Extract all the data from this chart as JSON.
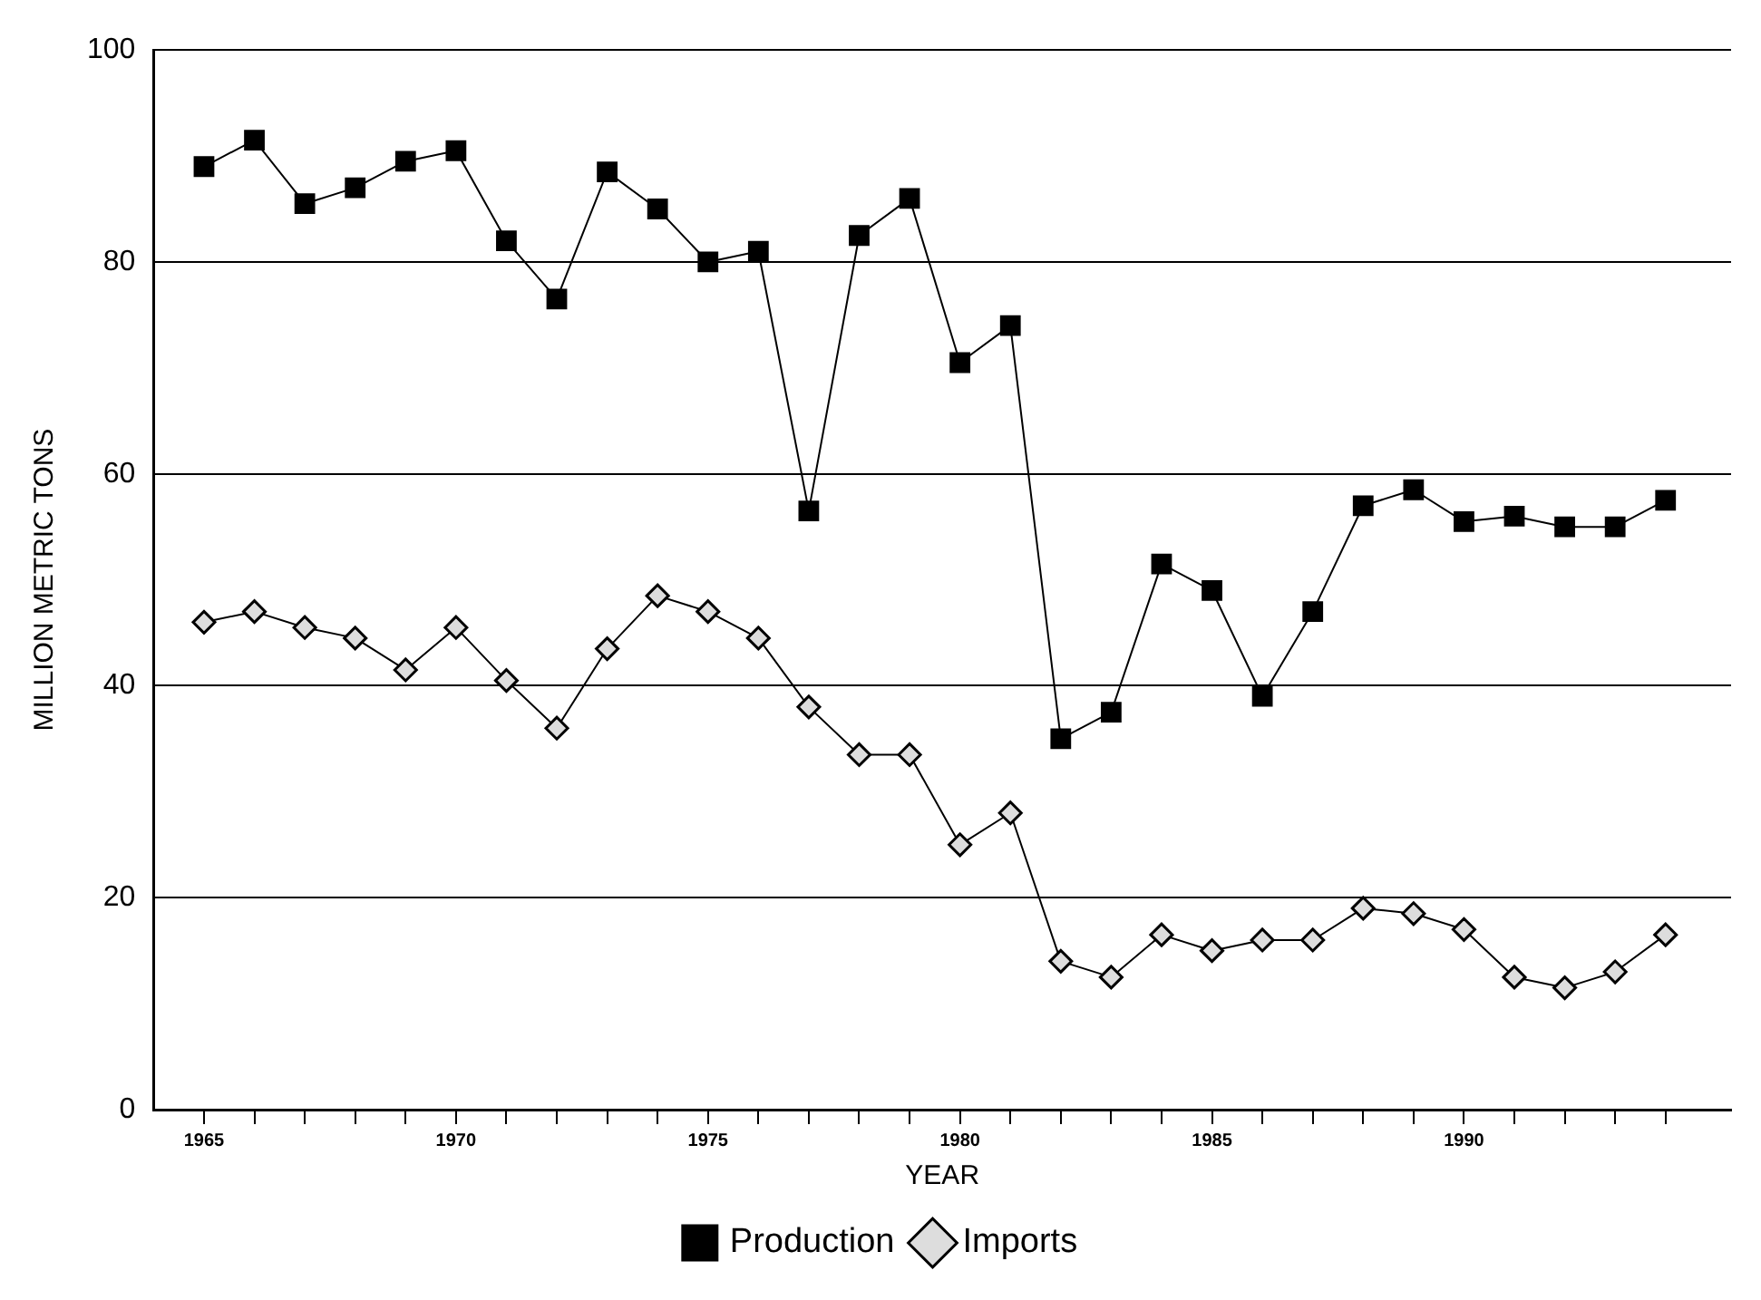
{
  "chart_data": {
    "type": "line",
    "xlabel": "YEAR",
    "ylabel": "MILLION METRIC TONS",
    "x": [
      1965,
      1966,
      1967,
      1968,
      1969,
      1970,
      1971,
      1972,
      1973,
      1974,
      1975,
      1976,
      1977,
      1978,
      1979,
      1980,
      1981,
      1982,
      1983,
      1984,
      1985,
      1986,
      1987,
      1988,
      1989,
      1990,
      1991,
      1992,
      1993,
      1994
    ],
    "series": [
      {
        "name": "Production",
        "color": "#000000",
        "marker": "square",
        "values": [
          89,
          91.5,
          85.5,
          87,
          89.5,
          90.5,
          82,
          76.5,
          88.5,
          85,
          80,
          81,
          56.5,
          82.5,
          86,
          70.5,
          74,
          35,
          37.5,
          51.5,
          49,
          39,
          47,
          57,
          58.5,
          55.5,
          56,
          55,
          55,
          57.5
        ]
      },
      {
        "name": "Imports",
        "color": "#000000",
        "marker": "diamond",
        "values": [
          46,
          47,
          45.5,
          44.5,
          41.5,
          45.5,
          40.5,
          36,
          43.5,
          48.5,
          47,
          44.5,
          38,
          33.5,
          33.5,
          25,
          28,
          14,
          12.5,
          16.5,
          15,
          16,
          16,
          19,
          18.5,
          17,
          12.5,
          11.5,
          13,
          16.5
        ]
      }
    ],
    "xlim": [
      1964,
      1995.3
    ],
    "xticks": [
      {
        "value": 1965,
        "label": "1965"
      },
      {
        "value": 1966,
        "label": null
      },
      {
        "value": 1967,
        "label": null
      },
      {
        "value": 1968,
        "label": null
      },
      {
        "value": 1969,
        "label": null
      },
      {
        "value": 1970,
        "label": "1970"
      },
      {
        "value": 1971,
        "label": null
      },
      {
        "value": 1972,
        "label": null
      },
      {
        "value": 1973,
        "label": null
      },
      {
        "value": 1974,
        "label": null
      },
      {
        "value": 1975,
        "label": "1975"
      },
      {
        "value": 1976,
        "label": null
      },
      {
        "value": 1977,
        "label": null
      },
      {
        "value": 1978,
        "label": null
      },
      {
        "value": 1979,
        "label": null
      },
      {
        "value": 1980,
        "label": "1980"
      },
      {
        "value": 1981,
        "label": null
      },
      {
        "value": 1982,
        "label": null
      },
      {
        "value": 1983,
        "label": null
      },
      {
        "value": 1984,
        "label": null
      },
      {
        "value": 1985,
        "label": "1985"
      },
      {
        "value": 1986,
        "label": null
      },
      {
        "value": 1987,
        "label": null
      },
      {
        "value": 1988,
        "label": null
      },
      {
        "value": 1989,
        "label": null
      },
      {
        "value": 1990,
        "label": "1990"
      },
      {
        "value": 1991,
        "label": null
      },
      {
        "value": 1992,
        "label": null
      },
      {
        "value": 1993,
        "label": null
      },
      {
        "value": 1994,
        "label": null
      }
    ],
    "ylim": [
      0,
      100
    ],
    "yticks": [
      0,
      20,
      40,
      60,
      80,
      100
    ],
    "grid": "y",
    "legend": "bottom",
    "line_style": "solid"
  }
}
